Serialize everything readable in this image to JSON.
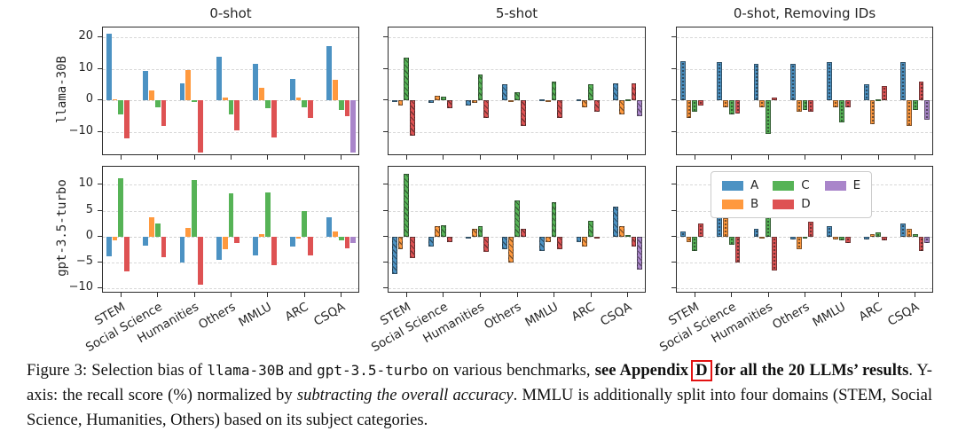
{
  "chart_data": {
    "type": "bar",
    "figure": "grouped bar charts, 2 rows x 3 columns, selection bias (recall minus overall accuracy)",
    "categories": [
      "STEM",
      "Social Science",
      "Humanities",
      "Others",
      "MMLU",
      "ARC",
      "CSQA"
    ],
    "series_names": [
      "A",
      "B",
      "C",
      "D",
      "E"
    ],
    "palette": {
      "A": "#4C92C3",
      "B": "#FF993E",
      "C": "#56B356",
      "D": "#DE5253",
      "E": "#A985CA"
    },
    "grid_dashed": true,
    "rows": [
      {
        "label": "llama-30B",
        "ylim": [
          -17.5,
          23
        ],
        "yticks": [
          20,
          10,
          0,
          -10
        ]
      },
      {
        "label": "gpt-3.5-turbo",
        "ylim": [
          -11,
          13.5
        ],
        "yticks": [
          10,
          5,
          0,
          -5,
          -10
        ]
      }
    ],
    "cols": [
      {
        "title": "0-shot",
        "hatch": "none"
      },
      {
        "title": "5-shot",
        "hatch": "diag"
      },
      {
        "title": "0-shot, Removing IDs",
        "hatch": "dot"
      }
    ],
    "cells": [
      {
        "row": 0,
        "col": 0,
        "series": {
          "A": [
            21,
            9.2,
            5.5,
            13.8,
            11.5,
            6.8,
            17.2
          ],
          "B": [
            0.3,
            3.3,
            9.7,
            0.8,
            4,
            1,
            6.5
          ],
          "C": [
            -4.5,
            -2,
            -0.5,
            -4.5,
            -2.5,
            -2,
            -3
          ],
          "D": [
            -12,
            -8,
            -16.5,
            -9.5,
            -11.5,
            -5.5,
            -5
          ],
          "E": [
            null,
            null,
            null,
            null,
            null,
            null,
            -16.5
          ]
        }
      },
      {
        "row": 0,
        "col": 1,
        "series": {
          "A": [
            -0.5,
            -0.7,
            -1.5,
            5,
            0.5,
            0.3,
            5.5
          ],
          "B": [
            -1.5,
            1.5,
            -0.8,
            -0.5,
            -0.5,
            -2,
            -4.5
          ],
          "C": [
            13.5,
            1.2,
            8.3,
            2.5,
            6,
            5,
            0.5
          ],
          "D": [
            -11,
            -2.5,
            -5.5,
            -8,
            -5.5,
            -3.5,
            5.5
          ],
          "E": [
            null,
            null,
            null,
            null,
            null,
            null,
            -5
          ]
        }
      },
      {
        "row": 0,
        "col": 2,
        "series": {
          "A": [
            12.5,
            12,
            11.5,
            11.5,
            12,
            5,
            12
          ],
          "B": [
            -5.5,
            -2,
            -2,
            -3.5,
            -2,
            -7.5,
            -8
          ],
          "C": [
            -3.5,
            -4.5,
            -10.5,
            -3,
            -7,
            0.3,
            -3
          ],
          "D": [
            -1.5,
            -4,
            1,
            -3.5,
            -2,
            4.5,
            6
          ],
          "E": [
            null,
            null,
            null,
            null,
            null,
            null,
            -6
          ]
        }
      },
      {
        "row": 1,
        "col": 0,
        "series": {
          "A": [
            -3.8,
            -1.7,
            -5,
            -4.5,
            -3.6,
            -2,
            3.7
          ],
          "B": [
            -0.8,
            3.7,
            1.7,
            -2.5,
            0.4,
            -0.4,
            1
          ],
          "C": [
            11.2,
            2.5,
            11,
            8.4,
            8.6,
            5,
            -0.8
          ],
          "D": [
            -6.7,
            -4,
            -9.3,
            -1.2,
            -5.6,
            -3.6,
            -2.2
          ],
          "E": [
            null,
            null,
            null,
            null,
            null,
            null,
            -1.3
          ]
        }
      },
      {
        "row": 1,
        "col": 1,
        "series": {
          "A": [
            -7.3,
            -2,
            -0.4,
            -2.5,
            -2.8,
            -1,
            5.8
          ],
          "B": [
            -2.5,
            2,
            1.5,
            -5,
            -1,
            -2,
            2
          ],
          "C": [
            12.2,
            2.2,
            2,
            7,
            6.6,
            3,
            0.3
          ],
          "D": [
            -4.2,
            -1,
            -3,
            1.5,
            -2.5,
            -0.4,
            -2
          ],
          "E": [
            null,
            null,
            null,
            null,
            null,
            null,
            -6.3
          ]
        }
      },
      {
        "row": 1,
        "col": 2,
        "series": {
          "A": [
            1,
            4.5,
            1.5,
            -0.5,
            2,
            -0.5,
            2.5
          ],
          "B": [
            -1,
            3.5,
            -0.3,
            -2.4,
            -0.5,
            0.5,
            1.5
          ],
          "C": [
            -2.8,
            -1.5,
            4,
            -0.3,
            -0.8,
            0.8,
            0.5
          ],
          "D": [
            2.5,
            -5,
            -6.5,
            2.8,
            -1.2,
            -0.7,
            -2.8
          ],
          "E": [
            null,
            null,
            null,
            null,
            null,
            null,
            -1.2
          ]
        }
      }
    ],
    "legend": {
      "location": "inside top of bottom-right subplot",
      "entries": [
        {
          "label": "A",
          "color": "#4C92C3"
        },
        {
          "label": "B",
          "color": "#FF993E"
        },
        {
          "label": "C",
          "color": "#56B356"
        },
        {
          "label": "D",
          "color": "#DE5253"
        },
        {
          "label": "E",
          "color": "#A985CA"
        }
      ]
    }
  },
  "caption": {
    "segments": [
      {
        "t": "Figure 3: ",
        "s": "plain"
      },
      {
        "t": "Selection bias of ",
        "s": "plain"
      },
      {
        "t": "llama-30B",
        "s": "mono"
      },
      {
        "t": " and ",
        "s": "plain"
      },
      {
        "t": "gpt-3.5-turbo",
        "s": "mono"
      },
      {
        "t": " on various benchmarks, ",
        "s": "plain"
      },
      {
        "t": "see Appendix",
        "s": "bold"
      },
      {
        "t": "D",
        "s": "boxed"
      },
      {
        "t": "for all ",
        "s": "bold"
      },
      {
        "t": "the 20 LLMs’ results",
        "s": "bold"
      },
      {
        "t": ". Y-axis: the recall score (%) normalized by ",
        "s": "plain"
      },
      {
        "t": "subtracting the overall accuracy",
        "s": "italic"
      },
      {
        "t": ". MMLU is additionally split into four domains (STEM, Social Science, Humanities, Others) based on its subject categories.",
        "s": "plain"
      }
    ]
  }
}
